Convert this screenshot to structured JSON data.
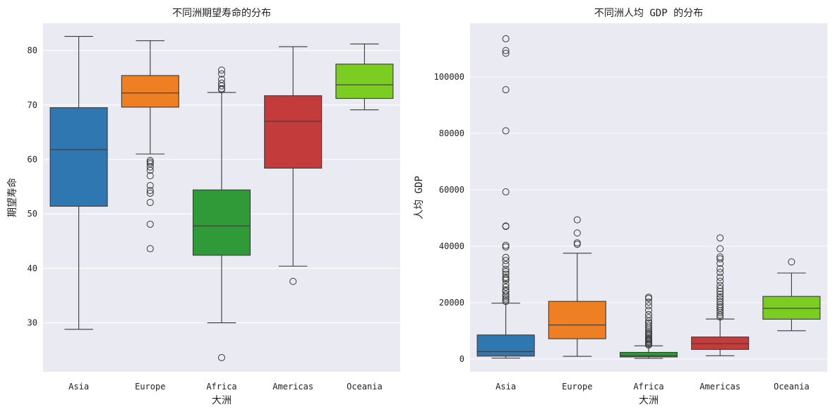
{
  "chart_data": [
    {
      "type": "box",
      "title": "不同洲期望寿命的分布",
      "xlabel": "大洲",
      "ylabel": "期望寿命",
      "ylim": [
        21,
        85
      ],
      "yticks": [
        30,
        40,
        50,
        60,
        70,
        80
      ],
      "ytick_labels": [
        "30",
        "40",
        "50",
        "60",
        "70",
        "80"
      ],
      "grid": true,
      "categories": [
        "Asia",
        "Europe",
        "Africa",
        "Americas",
        "Oceania"
      ],
      "colors": [
        "#2f77b0",
        "#ee7f22",
        "#2f9a37",
        "#c43b3c",
        "#7ccd22"
      ],
      "boxes": [
        {
          "whisker_low": 28.8,
          "q1": 51.4,
          "median": 61.8,
          "q3": 69.5,
          "whisker_high": 82.6,
          "outliers": []
        },
        {
          "whisker_low": 61.0,
          "q1": 69.6,
          "median": 72.2,
          "q3": 75.4,
          "whisker_high": 81.8,
          "outliers": [
            59.8,
            59.5,
            59.2,
            58.6,
            58.0,
            57.0,
            55.2,
            54.3,
            53.8,
            52.1,
            48.1,
            43.6
          ]
        },
        {
          "whisker_low": 30.0,
          "q1": 42.4,
          "median": 47.8,
          "q3": 54.4,
          "whisker_high": 72.3,
          "outliers": [
            76.4,
            75.7,
            74.7,
            74.0,
            73.5,
            73.0,
            72.8,
            23.6
          ]
        },
        {
          "whisker_low": 40.4,
          "q1": 58.4,
          "median": 67.0,
          "q3": 71.7,
          "whisker_high": 80.7,
          "outliers": [
            37.6
          ]
        },
        {
          "whisker_low": 69.1,
          "q1": 71.2,
          "median": 73.7,
          "q3": 77.5,
          "whisker_high": 81.2,
          "outliers": []
        }
      ]
    },
    {
      "type": "box",
      "title": "不同洲人均 GDP 的分布",
      "xlabel": "大洲",
      "ylabel": "人均 GDP",
      "ylim": [
        -4500,
        119000
      ],
      "yticks": [
        0,
        20000,
        40000,
        60000,
        80000,
        100000
      ],
      "ytick_labels": [
        "0",
        "20000",
        "40000",
        "60000",
        "80000",
        "100000"
      ],
      "grid": true,
      "categories": [
        "Asia",
        "Europe",
        "Africa",
        "Americas",
        "Oceania"
      ],
      "colors": [
        "#2f77b0",
        "#ee7f22",
        "#2f9a37",
        "#c43b3c",
        "#7ccd22"
      ],
      "boxes": [
        {
          "whisker_low": 331,
          "q1": 1057,
          "median": 2647,
          "q3": 8549,
          "whisker_high": 19830,
          "outliers": [
            113523,
            109348,
            108383,
            95458,
            80894,
            59265,
            47143,
            47000,
            40300,
            39724,
            36023,
            34933,
            33500,
            31800,
            31000,
            30100,
            29000,
            28500,
            28000,
            26500,
            25500,
            24500,
            24000,
            23000,
            22300,
            21600,
            21000,
            20400
          ]
        },
        {
          "whisker_low": 974,
          "q1": 7213,
          "median": 12081,
          "q3": 20461,
          "whisker_high": 37506,
          "outliers": [
            49357,
            44684,
            41200,
            40675
          ]
        },
        {
          "whisker_low": 241,
          "q1": 762,
          "median": 1193,
          "q3": 2378,
          "whisker_high": 4700,
          "outliers": [
            21951,
            21500,
            20200,
            18900,
            17300,
            15800,
            14700,
            13500,
            12800,
            12000,
            11300,
            10600,
            9900,
            9300,
            8800,
            8300,
            7800,
            7300,
            6900,
            6500,
            6100,
            5700,
            5300,
            5000
          ]
        },
        {
          "whisker_low": 1202,
          "q1": 3428,
          "median": 5466,
          "q3": 7830,
          "whisker_high": 14200,
          "outliers": [
            42952,
            39097,
            36200,
            35500,
            33900,
            32000,
            30700,
            29000,
            27600,
            26100,
            25000,
            24000,
            23000,
            22100,
            21400,
            20300,
            19300,
            18600,
            18000,
            17200,
            16400,
            15600,
            14900
          ]
        },
        {
          "whisker_low": 10040,
          "q1": 14142,
          "median": 17983,
          "q3": 22214,
          "whisker_high": 30500,
          "outliers": [
            34435
          ]
        }
      ]
    }
  ]
}
